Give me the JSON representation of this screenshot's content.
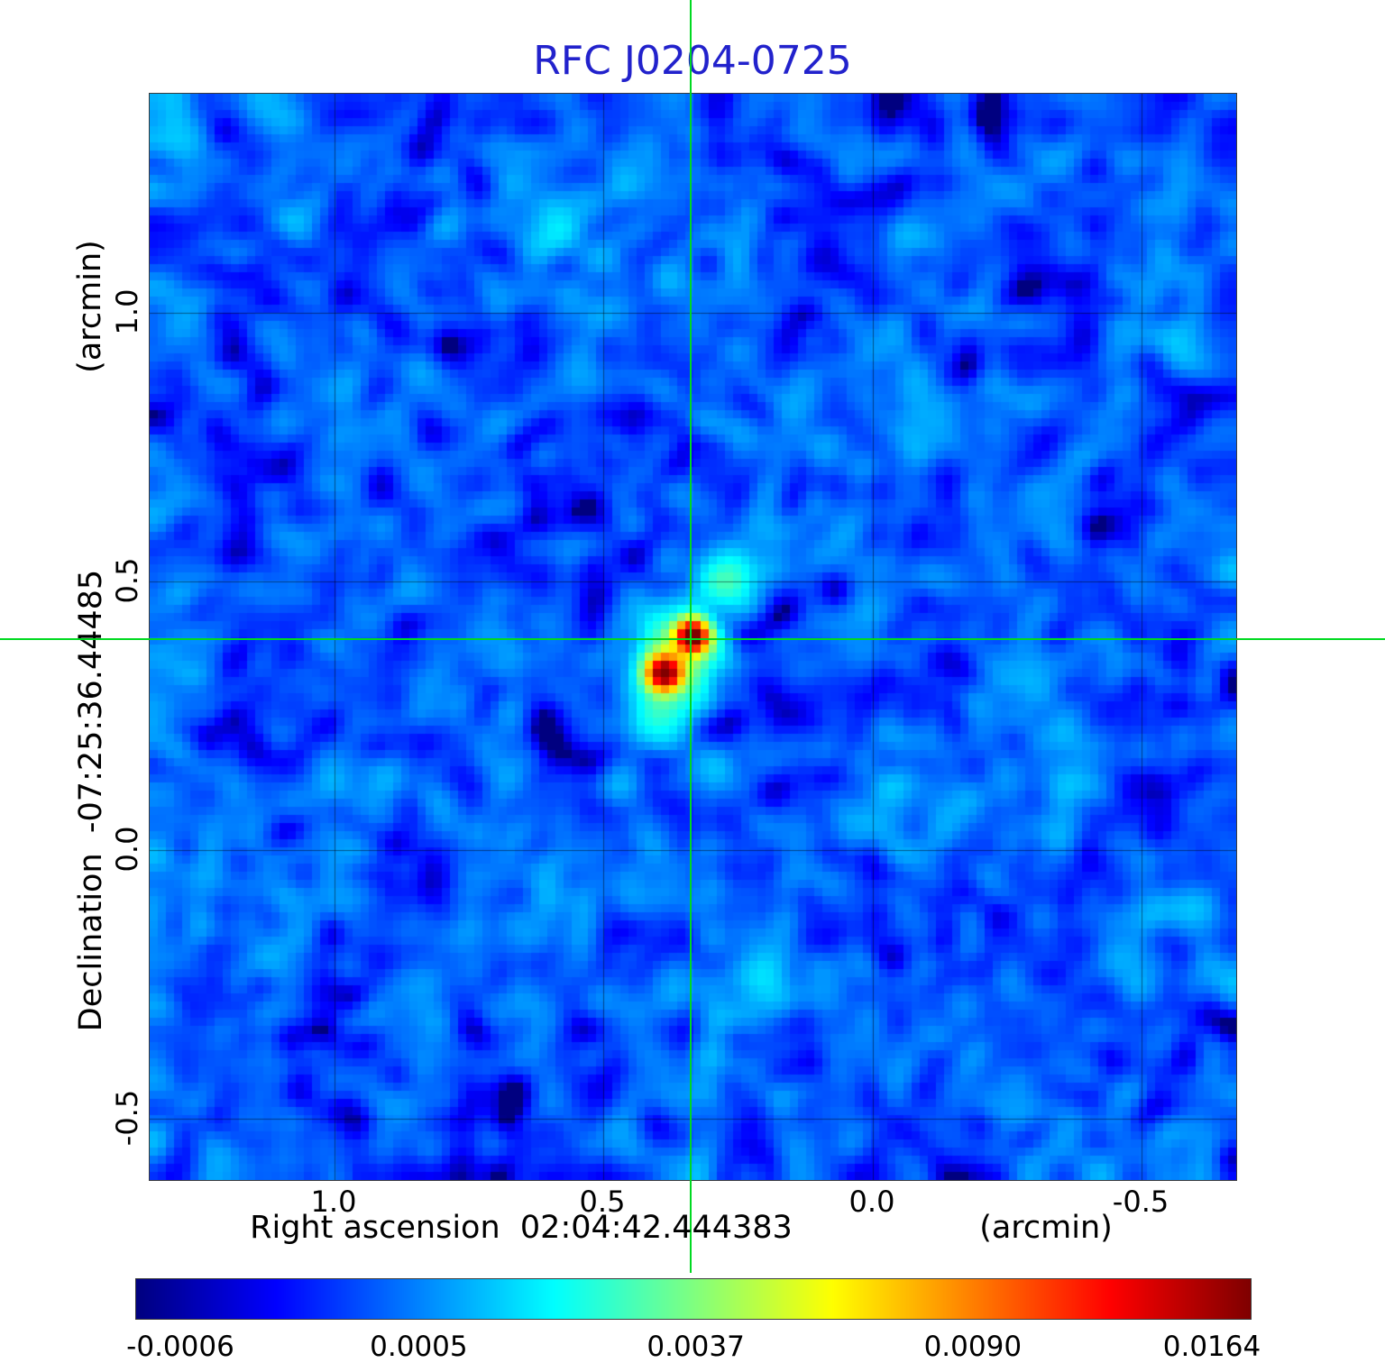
{
  "title": "RFC J0204-0725",
  "title_color": "#2222cc",
  "axes": {
    "y_unit": "(arcmin)",
    "y_label": "Declination  -07:25:36.44485",
    "x_label": "Right ascension  02:04:42.444383",
    "x_unit": "(arcmin)",
    "x_tick_labels": [
      "1.0",
      "0.5",
      "0.0",
      "-0.5"
    ],
    "y_tick_labels": [
      "1.0",
      "0.5",
      "0.0",
      "-0.5"
    ]
  },
  "colorbar": {
    "tick_labels": [
      "-0.0006",
      "0.0005",
      "0.0037",
      "0.0090",
      "0.0164"
    ]
  },
  "chart_data": {
    "type": "heatmap",
    "title": "RFC J0204-0725",
    "xlabel": "Right ascension 02:04:42.444383 (arcmin)",
    "ylabel": "Declination -07:25:36.44485 (arcmin)",
    "x_range": [
      1.344,
      -0.676
    ],
    "y_range": [
      1.407,
      -0.614
    ],
    "x_ticks": [
      1.0,
      0.5,
      0.0,
      -0.5
    ],
    "y_ticks": [
      1.0,
      0.5,
      0.0,
      -0.5
    ],
    "value_min": -0.0006,
    "value_max": 0.0164,
    "scale": "sqrt",
    "colormap": "jet",
    "colorbar_ticks": [
      -0.0006,
      0.0005,
      0.0037,
      0.009,
      0.0164
    ],
    "grid_color_alpha": 0.45,
    "crosshair": {
      "x": 0.336,
      "y": 0.391,
      "color": "#00d921"
    },
    "grid_cells": 134,
    "noise": {
      "seed": 11,
      "mean": 0.00018,
      "std": 0.00028,
      "coarse_std": 0.00013,
      "smooth_passes": 3
    },
    "sources": [
      {
        "x": 0.335,
        "y": 0.398,
        "sx": 0.02,
        "sy": 0.02,
        "amp": 0.0165
      },
      {
        "x": 0.388,
        "y": 0.328,
        "sx": 0.021,
        "sy": 0.021,
        "amp": 0.015
      },
      {
        "x": 0.36,
        "y": 0.365,
        "sx": 0.05,
        "sy": 0.055,
        "amp": 0.004
      },
      {
        "x": 0.272,
        "y": 0.51,
        "sx": 0.042,
        "sy": 0.038,
        "amp": 0.0022
      },
      {
        "x": 0.405,
        "y": 0.25,
        "sx": 0.035,
        "sy": 0.045,
        "amp": 0.0016
      }
    ]
  }
}
